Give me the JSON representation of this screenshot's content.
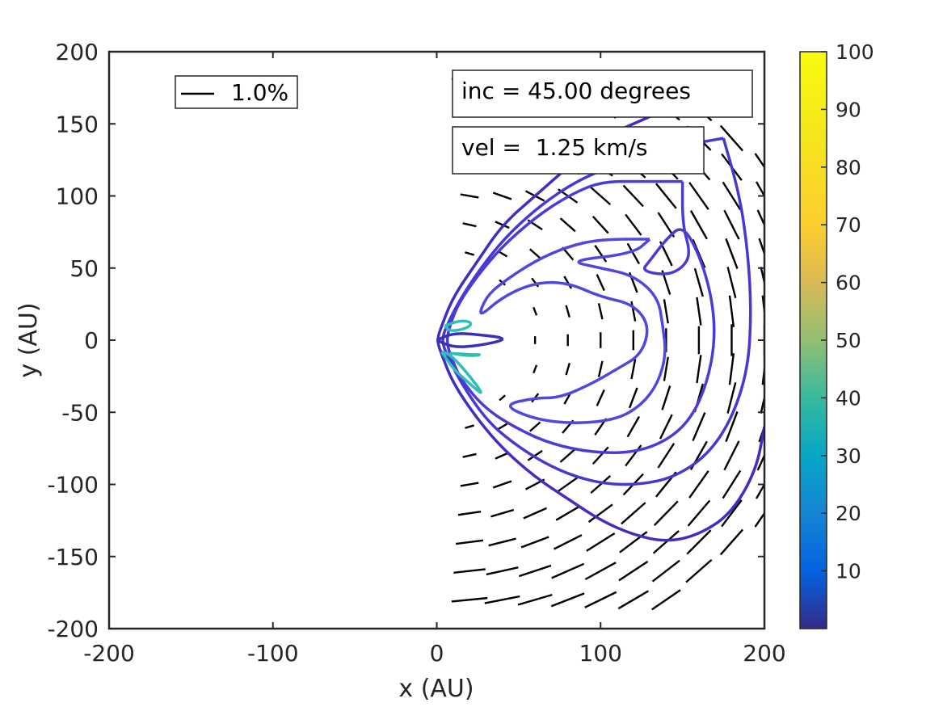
{
  "chart_data": {
    "type": "contour",
    "xlabel": "x (AU)",
    "ylabel": "y (AU)",
    "xlim": [
      -200,
      200
    ],
    "ylim": [
      -200,
      200
    ],
    "xticks": [
      -200,
      -100,
      0,
      100,
      200
    ],
    "yticks": [
      200,
      150,
      100,
      50,
      0,
      -50,
      -100,
      -150,
      -200
    ],
    "annotations": {
      "inc": "inc = 45.00 degrees",
      "vel": "vel =  1.25 km/s"
    },
    "legend": {
      "label": "1.0%",
      "placement": "top-left"
    },
    "colorbar": {
      "range": [
        0,
        100
      ],
      "ticks": [
        100,
        90,
        80,
        70,
        60,
        50,
        40,
        30,
        20,
        10
      ],
      "colormap": "parula"
    },
    "contours": [
      {
        "level_color": "#3e2fc0",
        "points": [
          [
            180,
            170
          ],
          [
            150,
            165
          ],
          [
            120,
            150
          ],
          [
            100,
            140
          ],
          [
            80,
            120
          ],
          [
            60,
            100
          ],
          [
            40,
            80
          ],
          [
            25,
            55
          ],
          [
            10,
            30
          ],
          [
            3,
            10
          ],
          [
            0,
            0
          ],
          [
            3,
            -10
          ],
          [
            10,
            -30
          ],
          [
            25,
            -55
          ],
          [
            40,
            -75
          ],
          [
            60,
            -95
          ],
          [
            80,
            -110
          ],
          [
            100,
            -125
          ],
          [
            120,
            -135
          ],
          [
            140,
            -140
          ],
          [
            160,
            -135
          ],
          [
            180,
            -120
          ],
          [
            195,
            -90
          ],
          [
            200,
            -60
          ]
        ]
      },
      {
        "level_color": "#4638d0",
        "points": [
          [
            175,
            140
          ],
          [
            150,
            135
          ],
          [
            125,
            130
          ],
          [
            105,
            120
          ],
          [
            85,
            110
          ],
          [
            65,
            95
          ],
          [
            45,
            75
          ],
          [
            30,
            55
          ],
          [
            15,
            30
          ],
          [
            6,
            10
          ],
          [
            3,
            0
          ],
          [
            6,
            -10
          ],
          [
            15,
            -30
          ],
          [
            30,
            -55
          ],
          [
            45,
            -70
          ],
          [
            65,
            -85
          ],
          [
            85,
            -95
          ],
          [
            105,
            -100
          ],
          [
            125,
            -100
          ],
          [
            145,
            -95
          ],
          [
            165,
            -80
          ],
          [
            180,
            -55
          ],
          [
            190,
            -20
          ],
          [
            192,
            20
          ],
          [
            190,
            60
          ],
          [
            185,
            100
          ],
          [
            175,
            140
          ]
        ]
      },
      {
        "level_color": "#4a3bd8",
        "points": [
          [
            150,
            110
          ],
          [
            125,
            110
          ],
          [
            100,
            110
          ],
          [
            80,
            100
          ],
          [
            60,
            85
          ],
          [
            40,
            65
          ],
          [
            25,
            45
          ],
          [
            13,
            25
          ],
          [
            8,
            10
          ],
          [
            6,
            0
          ],
          [
            8,
            -10
          ],
          [
            15,
            -28
          ],
          [
            30,
            -48
          ],
          [
            50,
            -62
          ],
          [
            70,
            -72
          ],
          [
            95,
            -78
          ],
          [
            120,
            -78
          ],
          [
            140,
            -70
          ],
          [
            155,
            -55
          ],
          [
            165,
            -30
          ],
          [
            170,
            0
          ],
          [
            168,
            30
          ],
          [
            160,
            60
          ],
          [
            150,
            80
          ],
          [
            140,
            70
          ],
          [
            130,
            55
          ],
          [
            125,
            48
          ],
          [
            140,
            45
          ],
          [
            150,
            50
          ],
          [
            155,
            60
          ],
          [
            150,
            80
          ],
          [
            150,
            110
          ]
        ]
      },
      {
        "level_color": "#5146e0",
        "points": [
          [
            130,
            70
          ],
          [
            100,
            70
          ],
          [
            80,
            65
          ],
          [
            60,
            55
          ],
          [
            40,
            40
          ],
          [
            30,
            30
          ],
          [
            25,
            15
          ],
          [
            40,
            30
          ],
          [
            60,
            40
          ],
          [
            80,
            40
          ],
          [
            100,
            30
          ],
          [
            120,
            25
          ],
          [
            130,
            10
          ],
          [
            125,
            -10
          ],
          [
            110,
            -20
          ],
          [
            95,
            -30
          ],
          [
            75,
            -40
          ],
          [
            60,
            -40
          ],
          [
            40,
            -45
          ],
          [
            60,
            -55
          ],
          [
            85,
            -58
          ],
          [
            110,
            -55
          ],
          [
            125,
            -45
          ],
          [
            135,
            -30
          ],
          [
            140,
            -10
          ],
          [
            138,
            10
          ],
          [
            135,
            30
          ],
          [
            120,
            45
          ],
          [
            100,
            50
          ],
          [
            80,
            55
          ],
          [
            120,
            60
          ],
          [
            130,
            70
          ]
        ]
      },
      {
        "level_color": "#3a2fb8",
        "points": [
          [
            0,
            0
          ],
          [
            10,
            5
          ],
          [
            25,
            4
          ],
          [
            45,
            1
          ],
          [
            25,
            -4
          ],
          [
            10,
            -5
          ],
          [
            0,
            0
          ]
        ]
      },
      {
        "level_color": "#2ec0b6",
        "points": [
          [
            5,
            10
          ],
          [
            15,
            14
          ],
          [
            22,
            12
          ],
          [
            18,
            8
          ],
          [
            8,
            6
          ],
          [
            5,
            10
          ]
        ]
      },
      {
        "level_color": "#2ec0b6",
        "points": [
          [
            3,
            -8
          ],
          [
            10,
            -20
          ],
          [
            20,
            -30
          ],
          [
            28,
            -38
          ],
          [
            25,
            -32
          ],
          [
            15,
            -18
          ],
          [
            8,
            -10
          ],
          [
            3,
            -8
          ]
        ]
      },
      {
        "level_color": "#2ec0b6",
        "points": [
          [
            8,
            -9
          ],
          [
            20,
            -10
          ],
          [
            28,
            -10
          ],
          [
            20,
            -11
          ],
          [
            8,
            -9
          ]
        ]
      }
    ]
  }
}
